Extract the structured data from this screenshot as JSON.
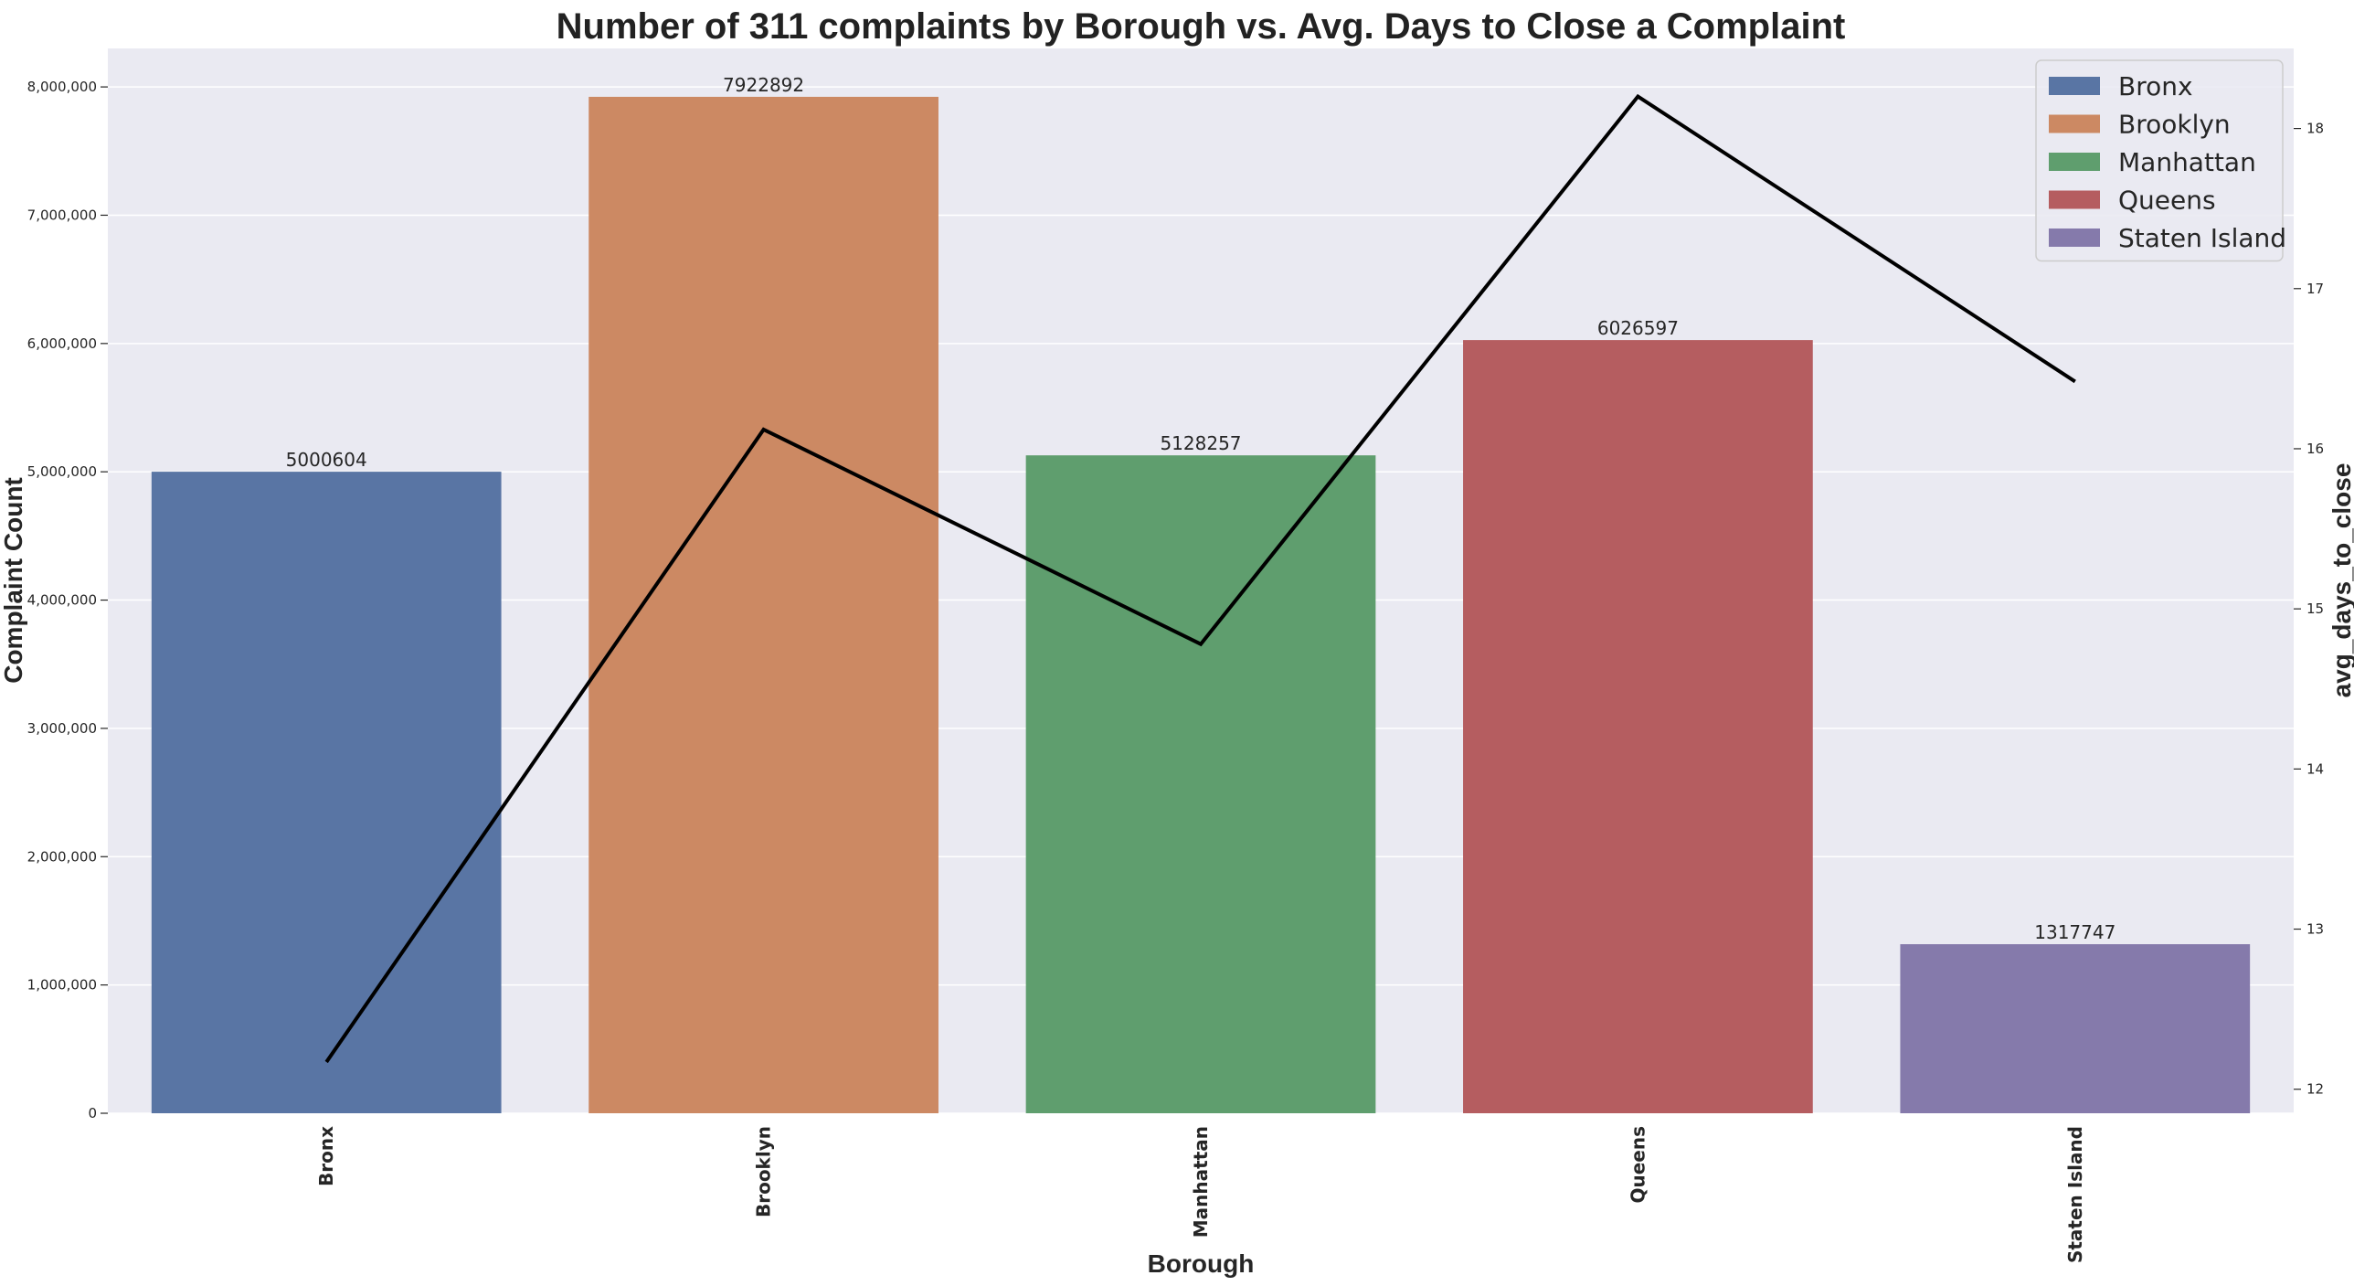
{
  "chart_data": {
    "type": "bar",
    "title": "Number of 311 complaints by Borough vs. Avg. Days to Close a Complaint",
    "xlabel": "Borough",
    "ylabel": "Complaint Count",
    "y2label": "avg_days_to_close",
    "categories": [
      "Bronx",
      "Brooklyn",
      "Manhattan",
      "Queens",
      "Staten Island"
    ],
    "values": [
      5000604,
      7922892,
      5128257,
      6026597,
      1317747
    ],
    "bar_labels": [
      "5000604",
      "7922892",
      "5128257",
      "6026597",
      "1317747"
    ],
    "colors": [
      "#5975a4",
      "#cc8963",
      "#5f9e6e",
      "#b55d60",
      "#857aab"
    ],
    "ylim": [
      0,
      8300000
    ],
    "yticks": [
      0,
      1000000,
      2000000,
      3000000,
      4000000,
      5000000,
      6000000,
      7000000,
      8000000
    ],
    "ytick_labels": [
      "0",
      "1,000,000",
      "2,000,000",
      "3,000,000",
      "4,000,000",
      "5,000,000",
      "6,000,000",
      "7,000,000",
      "8,000,000"
    ],
    "line_series": {
      "values": [
        12.17,
        16.12,
        14.78,
        18.2,
        16.42
      ],
      "color": "#000000"
    },
    "y2lim": [
      11.85,
      18.5
    ],
    "y2ticks": [
      12,
      13,
      14,
      15,
      16,
      17,
      18
    ],
    "y2tick_labels": [
      "12",
      "13",
      "14",
      "15",
      "16",
      "17",
      "18"
    ],
    "legend": {
      "placement": "top-right",
      "entries": [
        "Bronx",
        "Brooklyn",
        "Manhattan",
        "Queens",
        "Staten Island"
      ]
    },
    "grid": true,
    "background": "#eaeaf2"
  }
}
